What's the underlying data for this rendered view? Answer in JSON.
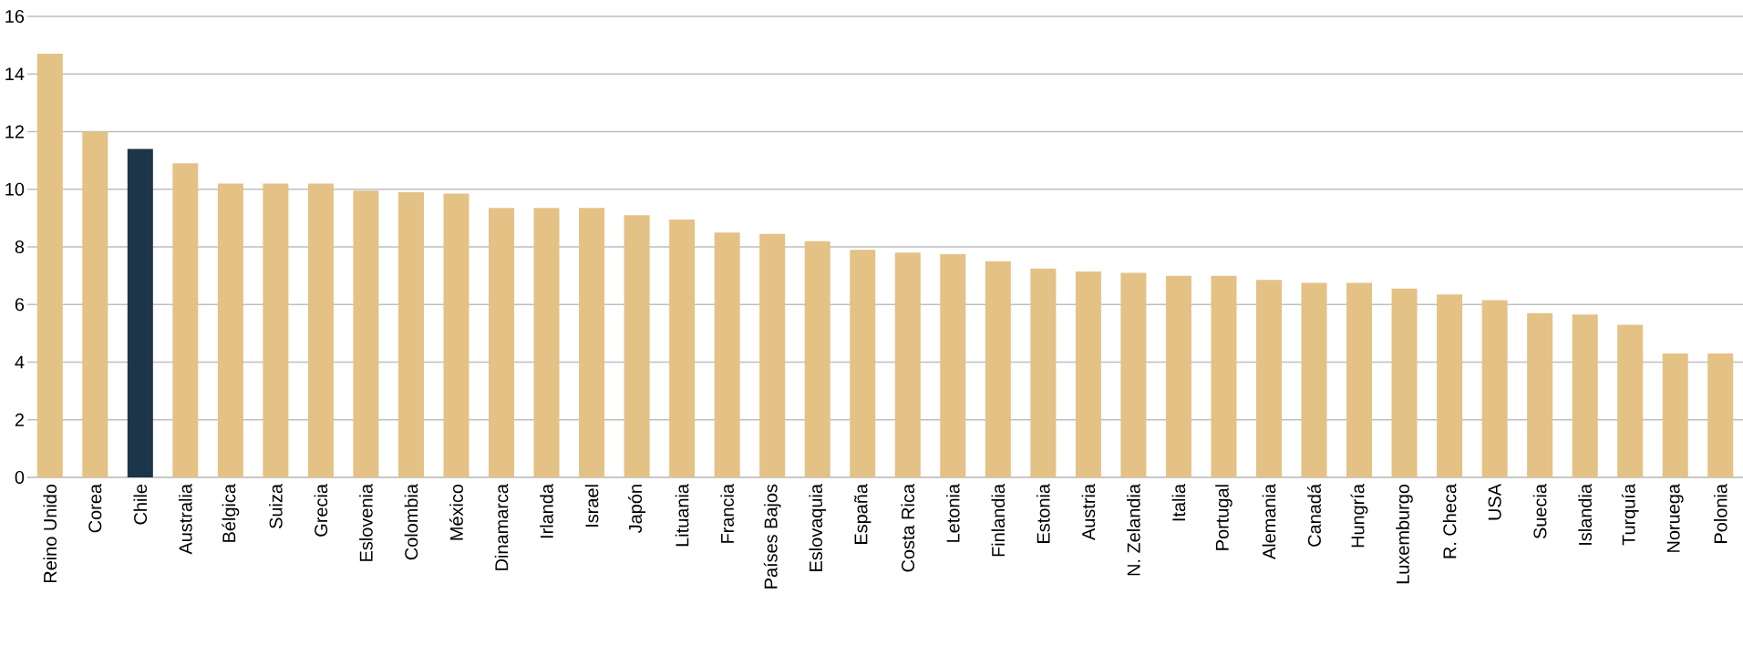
{
  "chart_data": {
    "type": "bar",
    "categories": [
      "Reino Unido",
      "Corea",
      "Chile",
      "Australia",
      "Bélgica",
      "Suiza",
      "Grecia",
      "Eslovenia",
      "Colombia",
      "México",
      "Dinamarca",
      "Irlanda",
      "Israel",
      "Japón",
      "Lituania",
      "Francia",
      "Países Bajos",
      "Eslovaquia",
      "España",
      "Costa Rica",
      "Letonia",
      "Finlandia",
      "Estonia",
      "Austria",
      "N. Zelandia",
      "Italia",
      "Portugal",
      "Alemania",
      "Canadá",
      "Hungría",
      "Luxemburgo",
      "R. Checa",
      "USA",
      "Suecia",
      "Islandia",
      "Turquía",
      "Noruega",
      "Polonia"
    ],
    "values": [
      14.7,
      12.0,
      11.4,
      10.9,
      10.2,
      10.2,
      10.2,
      9.95,
      9.9,
      9.85,
      9.35,
      9.35,
      9.35,
      9.1,
      8.95,
      8.5,
      8.45,
      8.2,
      7.9,
      7.8,
      7.75,
      7.5,
      7.25,
      7.15,
      7.1,
      7.0,
      7.0,
      6.85,
      6.75,
      6.75,
      6.55,
      6.35,
      6.15,
      5.7,
      5.65,
      5.3,
      4.3,
      4.3
    ],
    "colors": [
      "#e4c185",
      "#e4c185",
      "#1d3549",
      "#e4c185",
      "#e4c185",
      "#e4c185",
      "#e4c185",
      "#e4c185",
      "#e4c185",
      "#e4c185",
      "#e4c185",
      "#e4c185",
      "#e4c185",
      "#e4c185",
      "#e4c185",
      "#e4c185",
      "#e4c185",
      "#e4c185",
      "#e4c185",
      "#e4c185",
      "#e4c185",
      "#e4c185",
      "#e4c185",
      "#e4c185",
      "#e4c185",
      "#e4c185",
      "#e4c185",
      "#e4c185",
      "#e4c185",
      "#e4c185",
      "#e4c185",
      "#e4c185",
      "#e4c185",
      "#e4c185",
      "#e4c185",
      "#e4c185",
      "#e4c185",
      "#e4c185"
    ],
    "ylim": [
      0,
      16
    ],
    "yticks": [
      0,
      2,
      4,
      6,
      8,
      10,
      12,
      14,
      16
    ],
    "grid": "y"
  }
}
